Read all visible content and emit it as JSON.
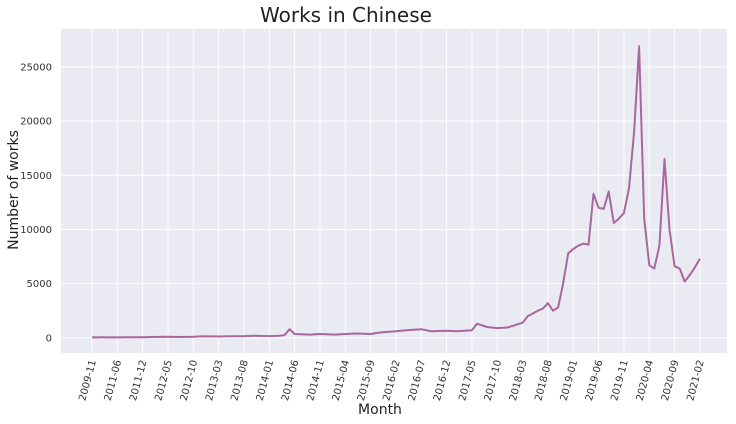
{
  "chart_data": {
    "type": "line",
    "title": "Works in Chinese",
    "xlabel": "Month",
    "ylabel": "Number of works",
    "grid": true,
    "background_color": "#eaeaf2",
    "series": [
      {
        "color": "#a8679e",
        "x": [
          "2009-11",
          "2010-01",
          "2010-03",
          "2010-05",
          "2010-07",
          "2010-09",
          "2010-11",
          "2011-01",
          "2011-03",
          "2011-06",
          "2011-08",
          "2011-10",
          "2011-12",
          "2012-02",
          "2012-05",
          "2012-07",
          "2012-10",
          "2012-12",
          "2013-03",
          "2013-05",
          "2013-08",
          "2013-10",
          "2014-01",
          "2014-03",
          "2014-04",
          "2014-05",
          "2014-06",
          "2014-09",
          "2014-11",
          "2015-02",
          "2015-04",
          "2015-06",
          "2015-09",
          "2015-11",
          "2016-02",
          "2016-04",
          "2016-07",
          "2016-09",
          "2016-12",
          "2017-02",
          "2017-05",
          "2017-06",
          "2017-08",
          "2017-10",
          "2017-12",
          "2018-01",
          "2018-03",
          "2018-04",
          "2018-06",
          "2018-07",
          "2018-08",
          "2018-09",
          "2018-10",
          "2018-11",
          "2018-12",
          "2019-01",
          "2019-02",
          "2019-03",
          "2019-04",
          "2019-05",
          "2019-06",
          "2019-07",
          "2019-08",
          "2019-09",
          "2019-10",
          "2019-11",
          "2019-12",
          "2020-01",
          "2020-02",
          "2020-03",
          "2020-04",
          "2020-05",
          "2020-06",
          "2020-07",
          "2020-08",
          "2020-09",
          "2020-10",
          "2020-11",
          "2020-12",
          "2021-01",
          "2021-02"
        ],
        "values": [
          30,
          50,
          40,
          60,
          50,
          40,
          50,
          40,
          50,
          40,
          60,
          50,
          60,
          80,
          100,
          80,
          100,
          150,
          120,
          140,
          150,
          200,
          160,
          200,
          250,
          800,
          350,
          300,
          350,
          300,
          350,
          400,
          350,
          500,
          600,
          700,
          800,
          600,
          650,
          600,
          700,
          1300,
          1000,
          900,
          950,
          1100,
          1400,
          2000,
          2500,
          2700,
          3200,
          2500,
          2800,
          5000,
          7800,
          8200,
          8500,
          8700,
          8600,
          13300,
          12000,
          11900,
          13500,
          10600,
          11000,
          11500,
          13800,
          19000,
          26900,
          11000,
          6700,
          6400,
          8500,
          16500,
          10000,
          6600,
          6400,
          5200,
          5800,
          6500,
          7300
        ]
      }
    ],
    "x_ticks": [
      "2009-11",
      "2011-06",
      "2011-12",
      "2012-05",
      "2012-10",
      "2013-03",
      "2013-08",
      "2014-01",
      "2014-06",
      "2014-11",
      "2015-04",
      "2015-09",
      "2016-02",
      "2016-07",
      "2016-12",
      "2017-05",
      "2017-10",
      "2018-03",
      "2018-08",
      "2019-01",
      "2019-06",
      "2019-11",
      "2020-04",
      "2020-09",
      "2021-02"
    ],
    "y_ticks": [
      "0",
      "5000",
      "10000",
      "15000",
      "20000",
      "25000"
    ],
    "ylim": [
      -1400,
      28500
    ]
  }
}
